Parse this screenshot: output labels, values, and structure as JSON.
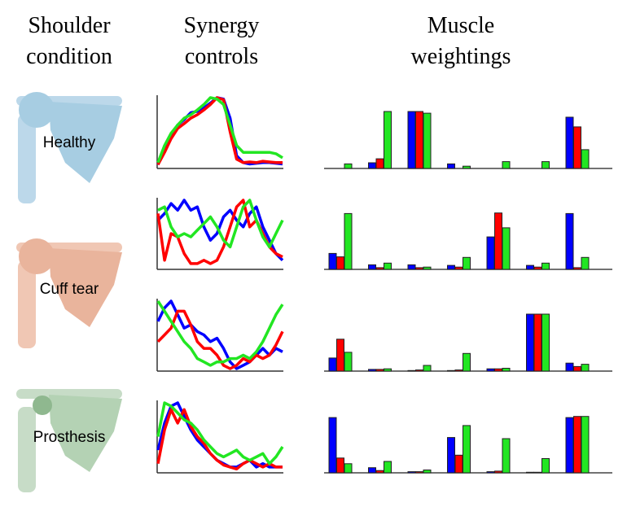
{
  "column_headers": [
    [
      "Shoulder",
      "condition"
    ],
    [
      "Synergy",
      "controls"
    ],
    [
      "Muscle",
      "weightings"
    ]
  ],
  "conditions": [
    "Healthy",
    "Cuff tear",
    "Prosthesis"
  ],
  "chart_data": [
    {
      "type": "line",
      "ylim": [
        0,
        1
      ],
      "categories": [
        null,
        null,
        null,
        null,
        null,
        null,
        null,
        null,
        null,
        null,
        null,
        null,
        null,
        null,
        null,
        null,
        null,
        null,
        null,
        null
      ],
      "series": [
        {
          "color": "#0000ff",
          "values": [
            0.02,
            0.25,
            0.45,
            0.6,
            0.68,
            0.78,
            0.8,
            0.85,
            0.92,
            1.0,
            0.98,
            0.7,
            0.15,
            0.05,
            0.03,
            0.04,
            0.05,
            0.05,
            0.04,
            0.03
          ]
        },
        {
          "color": "#ff0000",
          "values": [
            0.02,
            0.2,
            0.4,
            0.55,
            0.62,
            0.7,
            0.75,
            0.82,
            0.9,
            1.0,
            0.97,
            0.5,
            0.1,
            0.05,
            0.06,
            0.05,
            0.07,
            0.06,
            0.05,
            0.05
          ]
        },
        {
          "color": "#22e622",
          "values": [
            0.05,
            0.3,
            0.48,
            0.6,
            0.7,
            0.75,
            0.82,
            0.9,
            1.0,
            0.98,
            0.9,
            0.6,
            0.3,
            0.2,
            0.2,
            0.2,
            0.2,
            0.2,
            0.18,
            0.12
          ]
        }
      ]
    },
    {
      "type": "line",
      "ylim": [
        0,
        1
      ],
      "categories": [
        null,
        null,
        null,
        null,
        null,
        null,
        null,
        null,
        null,
        null,
        null,
        null,
        null,
        null,
        null,
        null,
        null,
        null,
        null,
        null
      ],
      "series": [
        {
          "color": "#0000ff",
          "values": [
            0.7,
            0.8,
            0.95,
            0.85,
            1.0,
            0.85,
            0.9,
            0.6,
            0.4,
            0.5,
            0.75,
            0.85,
            0.7,
            0.6,
            0.8,
            0.9,
            0.6,
            0.4,
            0.2,
            0.1
          ]
        },
        {
          "color": "#ff0000",
          "values": [
            0.8,
            0.1,
            0.5,
            0.45,
            0.2,
            0.05,
            0.05,
            0.1,
            0.05,
            0.1,
            0.3,
            0.6,
            0.9,
            1.0,
            0.6,
            0.7,
            0.5,
            0.3,
            0.2,
            0.15
          ]
        },
        {
          "color": "#22e622",
          "values": [
            0.85,
            0.9,
            0.6,
            0.45,
            0.5,
            0.45,
            0.55,
            0.65,
            0.75,
            0.6,
            0.4,
            0.3,
            0.6,
            0.9,
            1.0,
            0.7,
            0.45,
            0.3,
            0.5,
            0.7
          ]
        }
      ]
    },
    {
      "type": "line",
      "ylim": [
        0,
        1
      ],
      "categories": [
        null,
        null,
        null,
        null,
        null,
        null,
        null,
        null,
        null,
        null,
        null,
        null,
        null,
        null,
        null,
        null,
        null,
        null,
        null,
        null
      ],
      "series": [
        {
          "color": "#0000ff",
          "values": [
            0.7,
            0.9,
            1.0,
            0.8,
            0.6,
            0.65,
            0.55,
            0.5,
            0.4,
            0.45,
            0.3,
            0.1,
            0.0,
            0.05,
            0.1,
            0.2,
            0.3,
            0.2,
            0.3,
            0.25
          ]
        },
        {
          "color": "#ff0000",
          "values": [
            0.4,
            0.5,
            0.6,
            0.85,
            0.85,
            0.65,
            0.4,
            0.3,
            0.3,
            0.2,
            0.05,
            0.0,
            0.05,
            0.15,
            0.1,
            0.2,
            0.15,
            0.2,
            0.35,
            0.55
          ]
        },
        {
          "color": "#22e622",
          "values": [
            1.0,
            0.85,
            0.7,
            0.55,
            0.4,
            0.3,
            0.15,
            0.1,
            0.05,
            0.1,
            0.1,
            0.15,
            0.15,
            0.2,
            0.15,
            0.25,
            0.4,
            0.6,
            0.8,
            0.95
          ]
        }
      ]
    },
    {
      "type": "line",
      "ylim": [
        0,
        1
      ],
      "categories": [
        null,
        null,
        null,
        null,
        null,
        null,
        null,
        null,
        null,
        null,
        null,
        null,
        null,
        null,
        null,
        null,
        null,
        null,
        null,
        null
      ],
      "series": [
        {
          "color": "#0000ff",
          "values": [
            0.3,
            0.7,
            0.95,
            1.0,
            0.8,
            0.6,
            0.45,
            0.35,
            0.25,
            0.15,
            0.1,
            0.05,
            0.05,
            0.1,
            0.15,
            0.05,
            0.1,
            0.05,
            0.05,
            0.05
          ]
        },
        {
          "color": "#ff0000",
          "values": [
            0.1,
            0.6,
            0.9,
            0.7,
            0.9,
            0.65,
            0.5,
            0.4,
            0.25,
            0.15,
            0.08,
            0.05,
            0.02,
            0.1,
            0.15,
            0.1,
            0.05,
            0.1,
            0.05,
            0.05
          ]
        },
        {
          "color": "#22e622",
          "values": [
            0.5,
            1.0,
            0.95,
            0.85,
            0.75,
            0.7,
            0.6,
            0.45,
            0.35,
            0.25,
            0.2,
            0.25,
            0.3,
            0.2,
            0.15,
            0.2,
            0.25,
            0.1,
            0.2,
            0.35
          ]
        }
      ]
    },
    {
      "type": "bar",
      "ylim": [
        0,
        1
      ],
      "categories": [
        null,
        null,
        null,
        null,
        null,
        null,
        null
      ],
      "series": [
        {
          "color": "#0000ff",
          "values": [
            0,
            0.1,
            1.0,
            0.08,
            0,
            0,
            0.9
          ]
        },
        {
          "color": "#ff0000",
          "values": [
            0,
            0.17,
            1.0,
            0,
            0,
            0,
            0.73
          ]
        },
        {
          "color": "#22e622",
          "values": [
            0.08,
            1.0,
            0.97,
            0.04,
            0.12,
            0.12,
            0.33
          ]
        }
      ]
    },
    {
      "type": "bar",
      "ylim": [
        0,
        1
      ],
      "categories": [
        null,
        null,
        null,
        null,
        null,
        null,
        null
      ],
      "series": [
        {
          "color": "#0000ff",
          "values": [
            0.28,
            0.08,
            0.08,
            0.07,
            0.57,
            0.07,
            0.98
          ]
        },
        {
          "color": "#ff0000",
          "values": [
            0.22,
            0.03,
            0.03,
            0.04,
            0.99,
            0.04,
            0.03
          ]
        },
        {
          "color": "#22e622",
          "values": [
            0.98,
            0.11,
            0.04,
            0.21,
            0.73,
            0.11,
            0.21
          ]
        }
      ]
    },
    {
      "type": "bar",
      "ylim": [
        0,
        1
      ],
      "categories": [
        null,
        null,
        null,
        null,
        null,
        null,
        null
      ],
      "series": [
        {
          "color": "#0000ff",
          "values": [
            0.23,
            0.03,
            0.01,
            0.01,
            0.04,
            1.0,
            0.14
          ]
        },
        {
          "color": "#ff0000",
          "values": [
            0.56,
            0.03,
            0.02,
            0.02,
            0.04,
            1.0,
            0.08
          ]
        },
        {
          "color": "#22e622",
          "values": [
            0.33,
            0.04,
            0.1,
            0.31,
            0.05,
            1.0,
            0.12
          ]
        }
      ]
    },
    {
      "type": "bar",
      "ylim": [
        0,
        1
      ],
      "categories": [
        null,
        null,
        null,
        null,
        null,
        null,
        null
      ],
      "series": [
        {
          "color": "#0000ff",
          "values": [
            0.97,
            0.09,
            0.02,
            0.62,
            0.02,
            0.01,
            0.97
          ]
        },
        {
          "color": "#ff0000",
          "values": [
            0.26,
            0.04,
            0.02,
            0.31,
            0.03,
            0.01,
            0.99
          ]
        },
        {
          "color": "#22e622",
          "values": [
            0.16,
            0.2,
            0.05,
            0.83,
            0.6,
            0.25,
            0.99
          ]
        }
      ]
    }
  ]
}
